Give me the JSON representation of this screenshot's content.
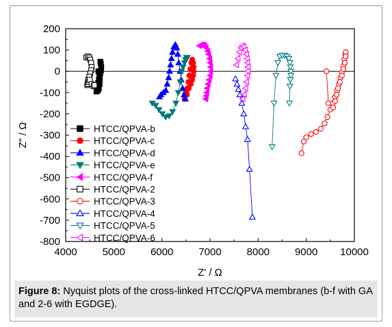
{
  "caption": {
    "label": "Figure 8:",
    "text": "Nyquist plots of the cross-linked HTCC/QPVA membranes (b-f with GA and 2-6 with EGDGE)."
  },
  "chart_data": {
    "type": "scatter",
    "title": "",
    "xlabel": "Z' / Ω",
    "ylabel": "Z\" / Ω",
    "xlim": [
      4000,
      10000
    ],
    "ylim": [
      -800,
      200
    ],
    "xticks": [
      4000,
      5000,
      6000,
      7000,
      8000,
      9000,
      10000
    ],
    "yticks": [
      200,
      100,
      0,
      -100,
      -200,
      -300,
      -400,
      -500,
      -600,
      -700,
      -800
    ],
    "zero_line": true,
    "grid": false,
    "legend_position": "left",
    "series": [
      {
        "name": "HTCC/QPVA-b",
        "color": "#000000",
        "marker": "square",
        "filled": true,
        "x": [
          4720,
          4730,
          4740,
          4735,
          4720,
          4705,
          4690,
          4675,
          4660,
          4660,
          4670,
          4690,
          4705,
          4710,
          4700,
          4680,
          4640
        ],
        "y": [
          45,
          35,
          20,
          5,
          -10,
          -25,
          -40,
          -55,
          -70,
          -85,
          -90,
          -80,
          -60,
          -40,
          -20,
          0,
          -95
        ]
      },
      {
        "name": "HTCC/QPVA-c",
        "color": "#ff0000",
        "marker": "circle",
        "filled": true,
        "x": [
          6470,
          6510,
          6560,
          6600,
          6630,
          6650,
          6660,
          6660,
          6650,
          6630,
          6610,
          6590,
          6570,
          6550,
          6530,
          6520
        ],
        "y": [
          -130,
          -100,
          -80,
          -60,
          -40,
          -20,
          0,
          20,
          40,
          55,
          40,
          10,
          -20,
          -50,
          -80,
          -110
        ]
      },
      {
        "name": "HTCC/QPVA-d",
        "color": "#0000ff",
        "marker": "triangle-up",
        "filled": true,
        "x": [
          5950,
          5980,
          6030,
          6080,
          6110,
          6140,
          6160,
          6180,
          6200,
          6220,
          6250,
          6280,
          6310,
          6330,
          6350,
          6380,
          6400,
          6430,
          6460,
          6490
        ],
        "y": [
          -120,
          -110,
          -100,
          -90,
          -60,
          -30,
          0,
          30,
          60,
          90,
          115,
          125,
          110,
          80,
          40,
          0,
          -40,
          -80,
          -110,
          -130
        ]
      },
      {
        "name": "HTCC/QPVA-e",
        "color": "#007a7a",
        "marker": "triangle-down",
        "filled": true,
        "x": [
          5800,
          5870,
          5940,
          6010,
          6080,
          6150,
          6220,
          6290,
          6340,
          6380,
          6410,
          6440,
          6470,
          6490,
          6510,
          6530
        ],
        "y": [
          -150,
          -160,
          -180,
          -200,
          -215,
          -210,
          -190,
          -150,
          -100,
          -50,
          0,
          20,
          40,
          55,
          65,
          65
        ]
      },
      {
        "name": "HTCC/QPVA-f",
        "color": "#ff00ff",
        "marker": "triangle-left",
        "filled": true,
        "x": [
          6780,
          6820,
          6860,
          6890,
          6920,
          6950,
          6970,
          6990,
          7000,
          7010,
          7010,
          7000,
          6980,
          6960,
          6940,
          6930,
          6920,
          6910
        ],
        "y": [
          120,
          125,
          125,
          120,
          110,
          95,
          80,
          60,
          40,
          20,
          0,
          -20,
          -40,
          -60,
          -80,
          -100,
          -115,
          -130
        ]
      },
      {
        "name": "HTCC/QPVA-2",
        "color": "#000000",
        "marker": "square",
        "filled": false,
        "x": [
          4430,
          4460,
          4490,
          4510,
          4530,
          4540,
          4530,
          4510,
          4490,
          4470,
          4460,
          4450,
          4460,
          4480,
          4500,
          4540,
          4580,
          4600
        ],
        "y": [
          65,
          70,
          65,
          55,
          40,
          20,
          5,
          -10,
          -25,
          -40,
          -55,
          -65,
          -60,
          -50,
          -40,
          -60,
          -70,
          -65
        ]
      },
      {
        "name": "HTCC/QPVA-3",
        "color": "#ff0000",
        "marker": "circle",
        "filled": false,
        "x": [
          8900,
          8950,
          9000,
          9100,
          9200,
          9300,
          9380,
          9440,
          9500,
          9550,
          9600,
          9640,
          9680,
          9710,
          9740,
          9770,
          9790,
          9810,
          9820,
          9820,
          9800,
          9770,
          9740,
          9700,
          9660,
          9630,
          9600,
          9560,
          9460,
          9420
        ],
        "y": [
          -385,
          -330,
          -310,
          -295,
          -285,
          -270,
          -245,
          -215,
          -180,
          -150,
          -120,
          -90,
          -60,
          -30,
          -5,
          25,
          55,
          80,
          90,
          70,
          40,
          10,
          -20,
          -50,
          -80,
          -110,
          -140,
          -170,
          -150,
          0
        ]
      },
      {
        "name": "HTCC/QPVA-4",
        "color": "#0000ff",
        "marker": "triangle-up",
        "filled": false,
        "x": [
          7530,
          7560,
          7590,
          7620,
          7660,
          7700,
          7740,
          7780,
          7820,
          7880
        ],
        "y": [
          -35,
          -60,
          -85,
          -110,
          -150,
          -200,
          -260,
          -320,
          -460,
          -685
        ]
      },
      {
        "name": "HTCC/QPVA-5",
        "color": "#007a7a",
        "marker": "triangle-down",
        "filled": false,
        "x": [
          8290,
          8330,
          8370,
          8410,
          8450,
          8500,
          8550,
          8600,
          8640,
          8660,
          8670,
          8680,
          8680,
          8670,
          8660,
          8650
        ],
        "y": [
          -355,
          -150,
          -20,
          40,
          70,
          75,
          75,
          70,
          60,
          40,
          20,
          0,
          -20,
          -40,
          -70,
          -150
        ]
      },
      {
        "name": "HTCC/QPVA-6",
        "color": "#ff00ff",
        "marker": "triangle-left",
        "filled": false,
        "x": [
          7550,
          7580,
          7610,
          7640,
          7670,
          7700,
          7730,
          7760,
          7770,
          7780,
          7790,
          7790,
          7780,
          7760,
          7740,
          7710,
          7680
        ],
        "y": [
          30,
          60,
          90,
          110,
          120,
          115,
          100,
          80,
          60,
          40,
          20,
          0,
          -20,
          -50,
          -80,
          -110,
          -130
        ]
      }
    ]
  }
}
